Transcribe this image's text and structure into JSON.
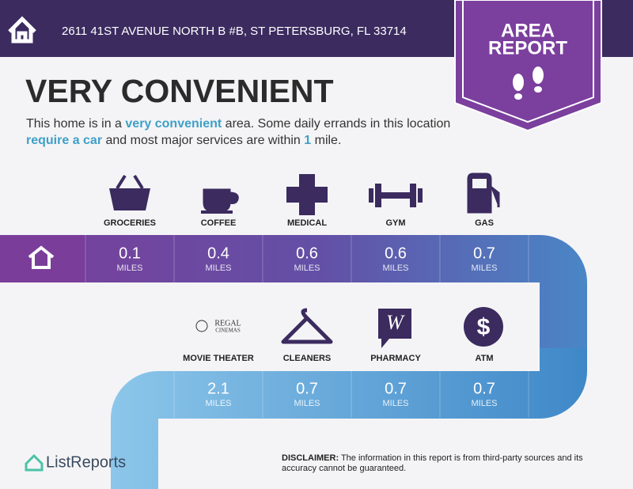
{
  "header": {
    "address": "2611 41ST AVENUE NORTH B #B, ST PETERSBURG, FL 33714"
  },
  "badge": {
    "lines": [
      "AREA",
      "REPORT"
    ]
  },
  "headline": "VERY CONVENIENT",
  "description": {
    "parts": [
      {
        "text": "This home is in a ",
        "em": false
      },
      {
        "text": "very convenient",
        "em": true
      },
      {
        "text": " area. Some daily errands in this location ",
        "em": false
      },
      {
        "text": "require a car",
        "em": true
      },
      {
        "text": " and most major services are within ",
        "em": false
      },
      {
        "text": "1",
        "em": true
      },
      {
        "text": " mile.",
        "em": false
      }
    ]
  },
  "rows": [
    [
      {
        "label": "GROCERIES",
        "distance": 0.1,
        "unit": "MILES"
      },
      {
        "label": "COFFEE",
        "distance": 0.4,
        "unit": "MILES"
      },
      {
        "label": "MEDICAL",
        "distance": 0.6,
        "unit": "MILES"
      },
      {
        "label": "GYM",
        "distance": 0.6,
        "unit": "MILES"
      },
      {
        "label": "GAS",
        "distance": 0.7,
        "unit": "MILES"
      }
    ],
    [
      {
        "label": "MOVIE THEATER",
        "distance": 2.1,
        "unit": "MILES",
        "logo": [
          "REGAL",
          "CINEMAS"
        ]
      },
      {
        "label": "CLEANERS",
        "distance": 0.7,
        "unit": "MILES"
      },
      {
        "label": "PHARMACY",
        "distance": 0.7,
        "unit": "MILES"
      },
      {
        "label": "ATM",
        "distance": 0.7,
        "unit": "MILES"
      }
    ]
  ],
  "footer": {
    "brand": "ListReports",
    "disclaimer_label": "DISCLAIMER:",
    "disclaimer": " The information in this report is from third-party sources and its accuracy cannot be guaranteed."
  }
}
